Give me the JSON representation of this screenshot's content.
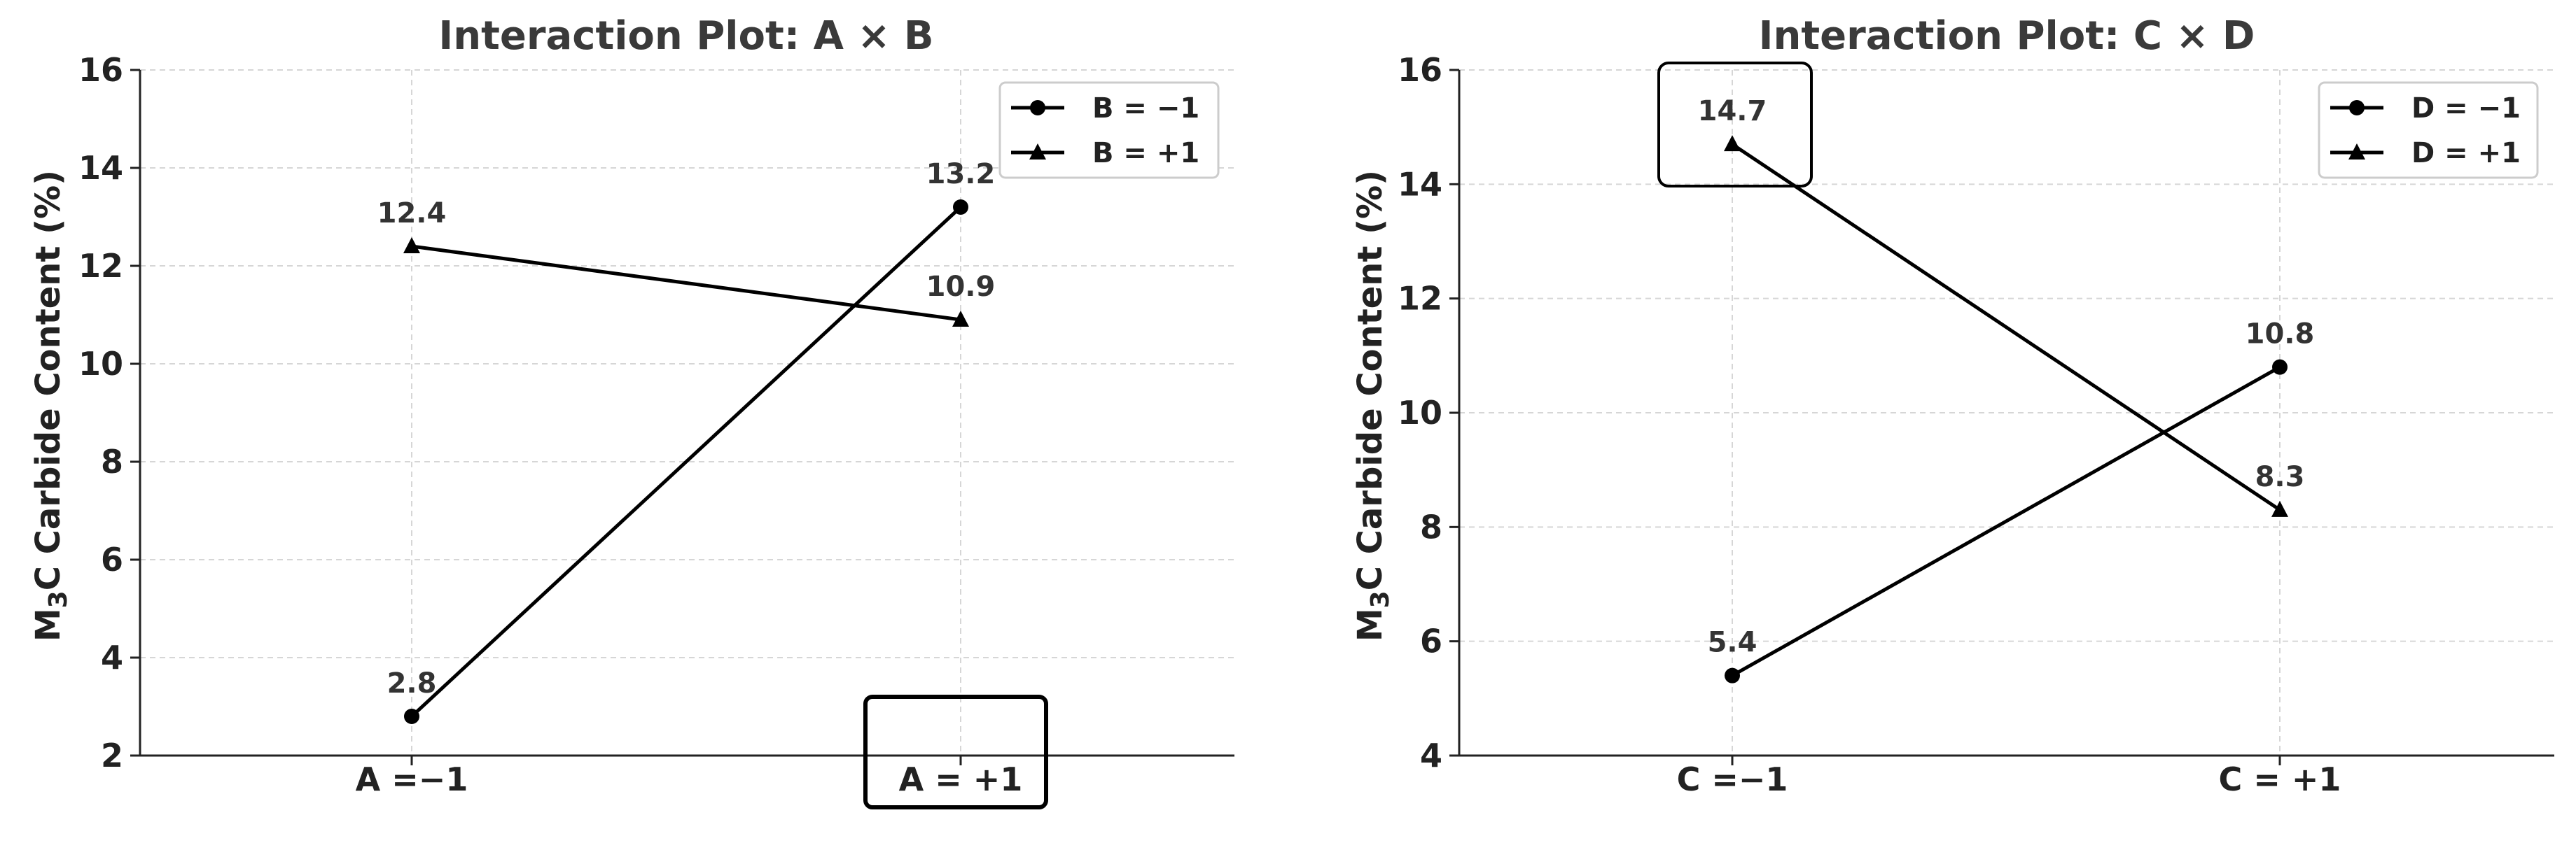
{
  "chart_data": [
    {
      "type": "line",
      "title": "Interaction Plot: A × B",
      "ylabel": "M₃C Carbide Content (%)",
      "ylabel_parts": [
        "M",
        "3",
        "C Carbide Content (%)"
      ],
      "categories": [
        "A =−1",
        "A = +1"
      ],
      "ylim": [
        2,
        16
      ],
      "yticks": [
        "2",
        "4",
        "6",
        "8",
        "10",
        "12",
        "14",
        "16"
      ],
      "grid": true,
      "legend": "top-right",
      "series": [
        {
          "name": "B = −1",
          "marker": "circle",
          "values": [
            2.8,
            13.2
          ],
          "labels": [
            "2.8",
            "13.2"
          ]
        },
        {
          "name": "B = +1",
          "marker": "triangle",
          "values": [
            12.4,
            10.9
          ],
          "labels": [
            "12.4",
            "10.9"
          ]
        }
      ],
      "highlight": "A = +1"
    },
    {
      "type": "line",
      "title": "Interaction Plot: C × D",
      "ylabel": "M₃C Carbide Content (%)",
      "ylabel_parts": [
        "M",
        "3",
        "C Carbide Content (%)"
      ],
      "categories": [
        "C =−1",
        "C = +1"
      ],
      "ylim": [
        4,
        16
      ],
      "yticks": [
        "4",
        "6",
        "8",
        "10",
        "12",
        "14",
        "16"
      ],
      "grid": true,
      "legend": "top-right",
      "series": [
        {
          "name": "D = −1",
          "marker": "circle",
          "values": [
            5.4,
            10.8
          ],
          "labels": [
            "5.4",
            "10.8"
          ]
        },
        {
          "name": "D = +1",
          "marker": "triangle",
          "values": [
            14.7,
            8.3
          ],
          "labels": [
            "14.7",
            "8.3"
          ]
        }
      ],
      "highlight": "14.7"
    }
  ]
}
